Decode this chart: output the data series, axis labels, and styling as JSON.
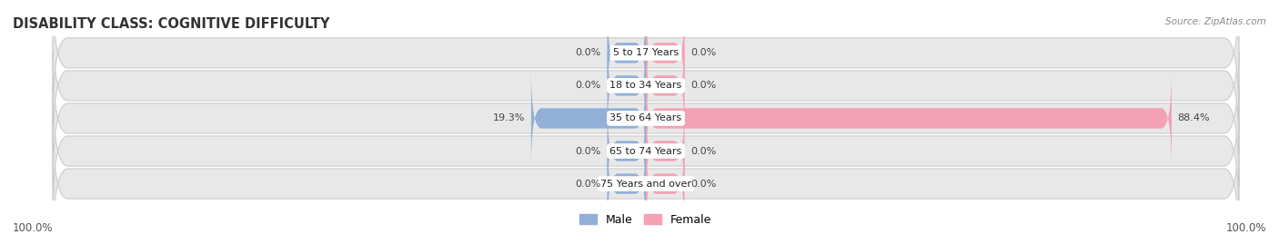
{
  "title": "DISABILITY CLASS: COGNITIVE DIFFICULTY",
  "source": "Source: ZipAtlas.com",
  "categories": [
    "5 to 17 Years",
    "18 to 34 Years",
    "35 to 64 Years",
    "65 to 74 Years",
    "75 Years and over"
  ],
  "male_values": [
    0.0,
    0.0,
    19.3,
    0.0,
    0.0
  ],
  "female_values": [
    0.0,
    0.0,
    88.4,
    0.0,
    0.0
  ],
  "male_color": "#92afd7",
  "female_color": "#f4a0b5",
  "row_bg_color": "#e8e8e8",
  "row_bg_color_alt": "#f0f0f0",
  "max_value": 100.0,
  "stub_size": 6.5,
  "bar_height": 0.62,
  "title_fontsize": 10.5,
  "label_fontsize": 8.0,
  "tick_fontsize": 8.5,
  "legend_fontsize": 9,
  "left_label": "100.0%",
  "right_label": "100.0%"
}
